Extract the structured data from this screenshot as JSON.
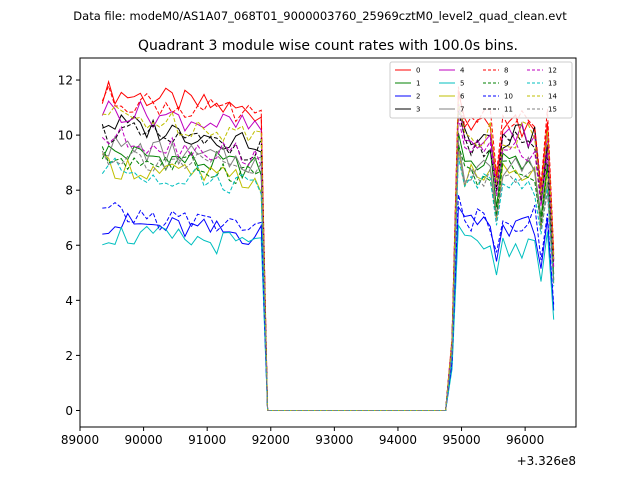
{
  "chart_data": {
    "type": "line",
    "suptitle": "Data file: modeM0/AS1A07_068T01_9000003760_25969cztM0_level2_quad_clean.evt",
    "title": "Quadrant 3 module wise count rates with 100.0s bins.",
    "xlabel": "",
    "ylabel": "",
    "x_offset_label": "+3.326e8",
    "xlim": [
      89000,
      96800
    ],
    "ylim": [
      -0.6,
      12.8
    ],
    "x_ticks": [
      89000,
      90000,
      91000,
      92000,
      93000,
      94000,
      95000,
      96000
    ],
    "x_tick_labels": [
      "89000",
      "90000",
      "91000",
      "92000",
      "93000",
      "94000",
      "95000",
      "96000"
    ],
    "y_ticks": [
      0,
      2,
      4,
      6,
      8,
      10,
      12
    ],
    "y_tick_labels": [
      "0",
      "2",
      "4",
      "6",
      "8",
      "10",
      "12"
    ],
    "legend_position": "top-right",
    "segments": [
      {
        "start": 89350,
        "end": 91850,
        "step": 100
      },
      {
        "start": 94850,
        "end": 96450,
        "step": 100
      }
    ],
    "drop_x": [
      91950,
      94750
    ],
    "series": [
      {
        "name": "0",
        "color": "#ff0000",
        "dash": "solid",
        "level": 11.2,
        "seg2": 10.3
      },
      {
        "name": "1",
        "color": "#008000",
        "dash": "solid",
        "level": 9.1,
        "seg2": 9.0
      },
      {
        "name": "2",
        "color": "#0000ff",
        "dash": "solid",
        "level": 6.6,
        "seg2": 6.6
      },
      {
        "name": "3",
        "color": "#000000",
        "dash": "solid",
        "level": 10.1,
        "seg2": 9.9
      },
      {
        "name": "4",
        "color": "#bf00bf",
        "dash": "solid",
        "level": 10.6,
        "seg2": 10.0
      },
      {
        "name": "5",
        "color": "#00bfbf",
        "dash": "solid",
        "level": 6.2,
        "seg2": 6.0
      },
      {
        "name": "6",
        "color": "#bfbf00",
        "dash": "solid",
        "level": 8.6,
        "seg2": 8.5
      },
      {
        "name": "7",
        "color": "#808080",
        "dash": "solid",
        "level": 9.3,
        "seg2": 8.7
      },
      {
        "name": "8",
        "color": "#ff0000",
        "dash": "dashed",
        "level": 11.0,
        "seg2": 10.5
      },
      {
        "name": "9",
        "color": "#008000",
        "dash": "dashed",
        "level": 8.9,
        "seg2": 8.6
      },
      {
        "name": "10",
        "color": "#0000ff",
        "dash": "dashed",
        "level": 6.9,
        "seg2": 7.0
      },
      {
        "name": "11",
        "color": "#000000",
        "dash": "dashed",
        "level": 9.8,
        "seg2": 9.7
      },
      {
        "name": "12",
        "color": "#bf00bf",
        "dash": "dashed",
        "level": 9.6,
        "seg2": 9.5
      },
      {
        "name": "13",
        "color": "#00bfbf",
        "dash": "dashed",
        "level": 8.5,
        "seg2": 8.2
      },
      {
        "name": "14",
        "color": "#bfbf00",
        "dash": "dashed",
        "level": 10.4,
        "seg2": 10.0
      },
      {
        "name": "15",
        "color": "#808080",
        "dash": "dashed",
        "level": 9.0,
        "seg2": 8.4
      }
    ]
  }
}
